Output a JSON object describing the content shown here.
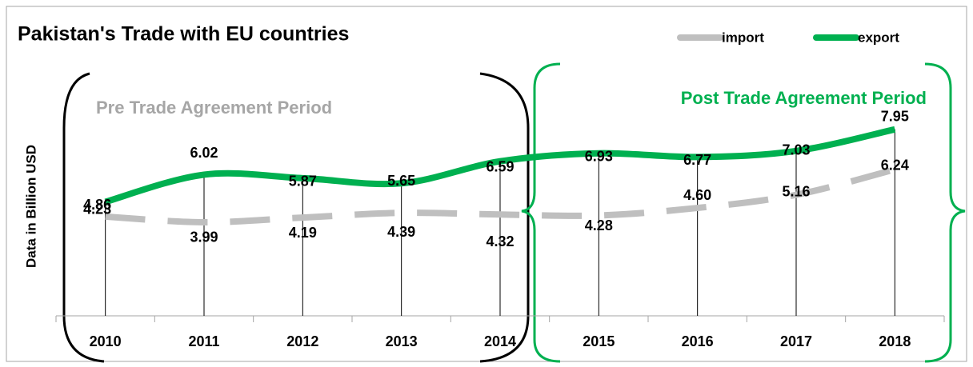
{
  "chart_data": {
    "type": "line",
    "title": "Pakistan's Trade with EU countries",
    "y_label": "Data in Billion USD",
    "annotations": [
      "Pre Trade Agreement Period",
      "Post Trade Agreement Period"
    ],
    "categories": [
      "2010",
      "2011",
      "2012",
      "2013",
      "2014",
      "2015",
      "2016",
      "2017",
      "2018"
    ],
    "series": [
      {
        "name": "import",
        "color": "#bfbfbf",
        "dashed": true,
        "values": [
          4.23,
          3.99,
          4.19,
          4.39,
          4.32,
          4.28,
          4.6,
          5.16,
          6.24
        ],
        "value_labels": [
          "4.23",
          "3.99",
          "4.19",
          "4.39",
          "4.32",
          "4.28",
          "4.60",
          "5.16",
          "6.24"
        ]
      },
      {
        "name": "export",
        "color": "#00b050",
        "values": [
          4.86,
          6.02,
          5.87,
          5.65,
          6.59,
          6.93,
          6.77,
          7.03,
          7.95
        ]
      }
    ],
    "ylim": [
      0,
      9
    ],
    "legend": "top-right",
    "drop_lines": true
  }
}
